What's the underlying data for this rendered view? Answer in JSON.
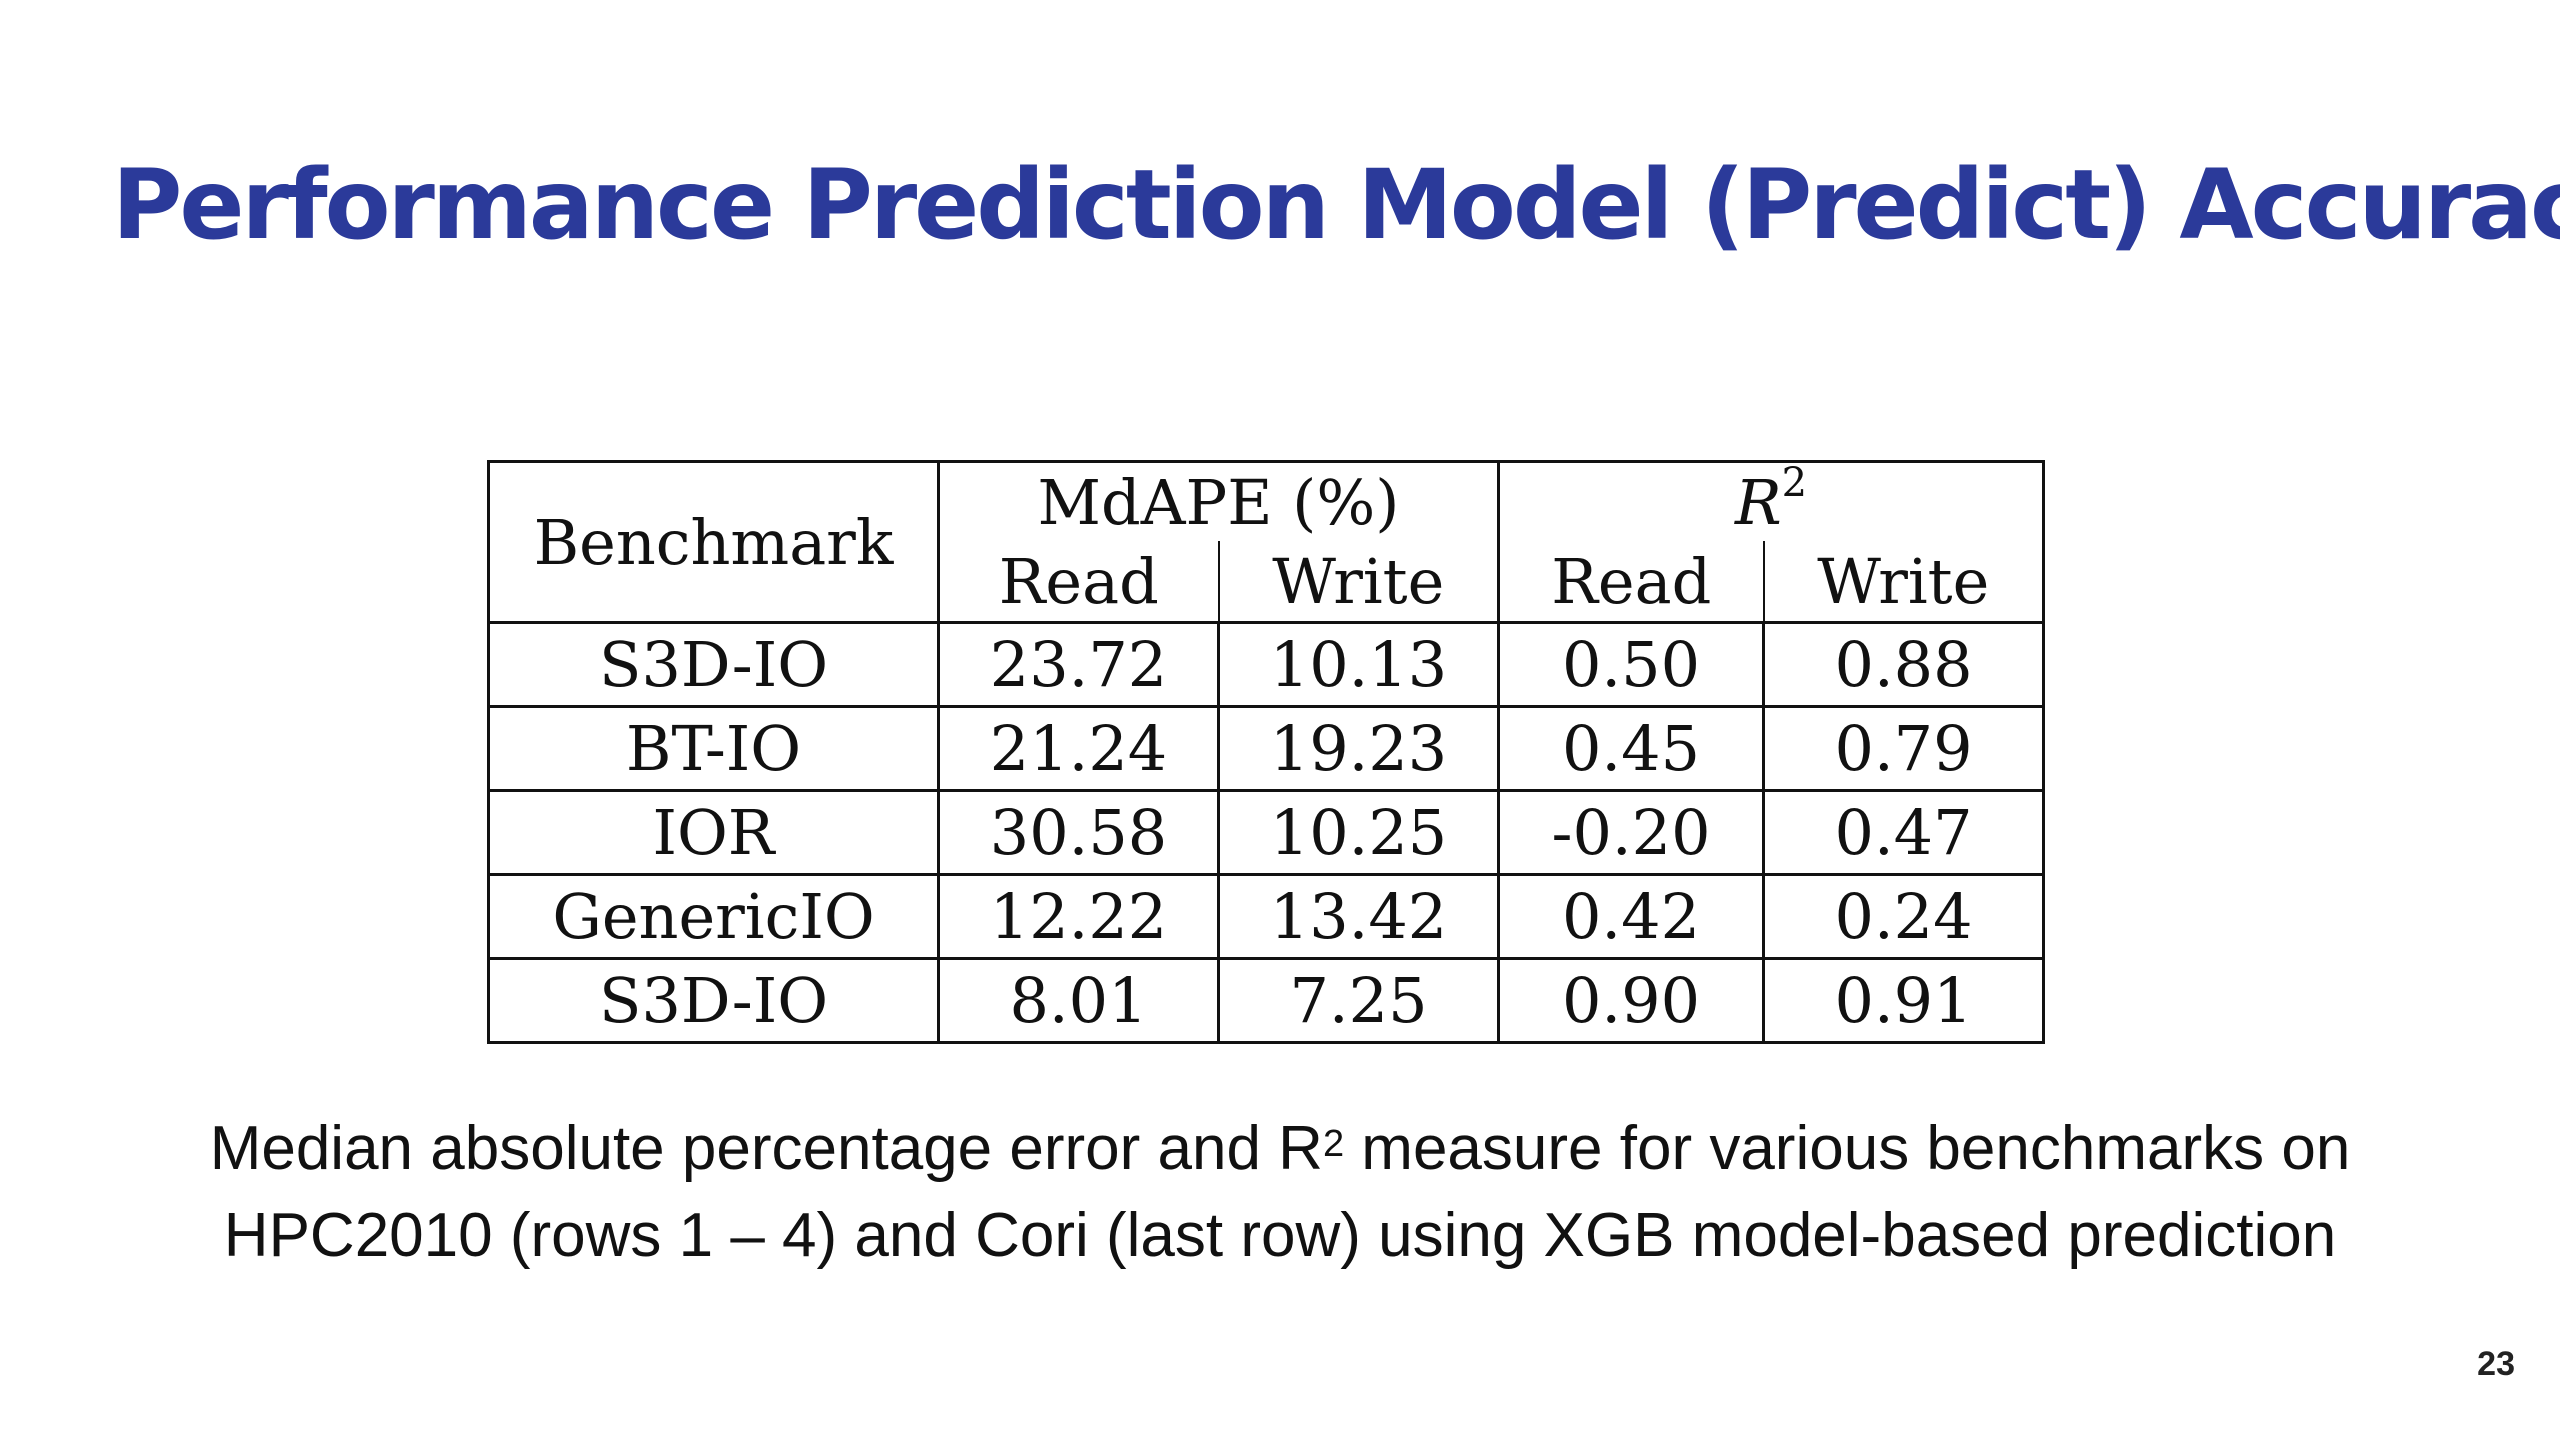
{
  "slide": {
    "title": "Performance Prediction Model (Predict) Accuracy",
    "title_color": "#2b3a9a",
    "page_number": "23"
  },
  "table": {
    "header": {
      "benchmark": "Benchmark",
      "mdape": "MdAPE (%)",
      "r2_letter": "R",
      "r2_exponent": "2",
      "read": "Read",
      "write": "Write"
    },
    "rows": [
      {
        "benchmark": "S3D-IO",
        "mdape_read": "23.72",
        "mdape_write": "10.13",
        "r2_read": "0.50",
        "r2_write": "0.88"
      },
      {
        "benchmark": "BT-IO",
        "mdape_read": "21.24",
        "mdape_write": "19.23",
        "r2_read": "0.45",
        "r2_write": "0.79"
      },
      {
        "benchmark": "IOR",
        "mdape_read": "30.58",
        "mdape_write": "10.25",
        "r2_read": "-0.20",
        "r2_write": "0.47"
      },
      {
        "benchmark": "GenericIO",
        "mdape_read": "12.22",
        "mdape_write": "13.42",
        "r2_read": "0.42",
        "r2_write": "0.24"
      },
      {
        "benchmark": "S3D-IO",
        "mdape_read": "8.01",
        "mdape_write": "7.25",
        "r2_read": "0.90",
        "r2_write": "0.91"
      }
    ]
  },
  "caption": {
    "line1_before": "Median absolute percentage error and R",
    "line1_sup": "2",
    "line1_after": " measure for various benchmarks on",
    "line2": "HPC2010 (rows 1 – 4) and Cori (last row) using XGB model-based prediction"
  }
}
